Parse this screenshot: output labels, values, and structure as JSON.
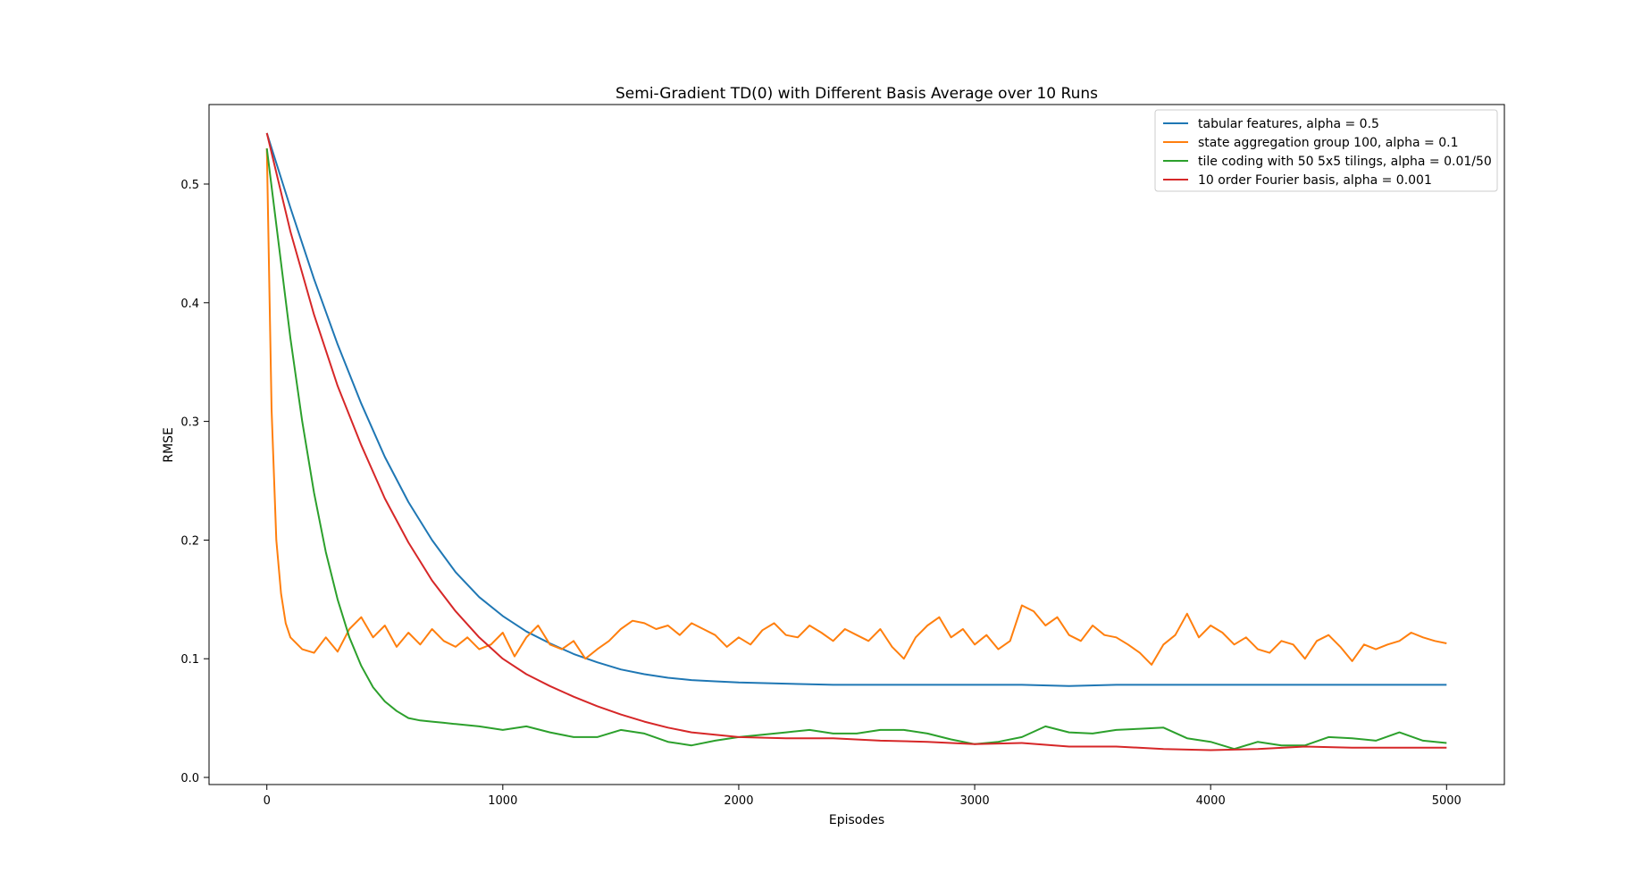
{
  "chart_data": {
    "type": "line",
    "title": "Semi-Gradient TD(0) with Different Basis Average over 10 Runs",
    "xlabel": "Episodes",
    "ylabel": "RMSE",
    "xlim": [
      -245,
      5245
    ],
    "ylim": [
      -0.006,
      0.567
    ],
    "xticks": [
      0,
      1000,
      2000,
      3000,
      4000,
      5000
    ],
    "xtick_labels": [
      "0",
      "1000",
      "2000",
      "3000",
      "4000",
      "5000"
    ],
    "yticks": [
      0.0,
      0.1,
      0.2,
      0.3,
      0.4,
      0.5
    ],
    "ytick_labels": [
      "0.0",
      "0.1",
      "0.2",
      "0.3",
      "0.4",
      "0.5"
    ],
    "grid": false,
    "legend_position": "upper right",
    "series": [
      {
        "name": "tabular features, alpha = 0.5",
        "color": "#1f77b4",
        "x": [
          0,
          100,
          200,
          300,
          400,
          500,
          600,
          700,
          800,
          900,
          1000,
          1100,
          1200,
          1300,
          1400,
          1500,
          1600,
          1700,
          1800,
          1900,
          2000,
          2200,
          2400,
          2600,
          2800,
          3000,
          3200,
          3400,
          3600,
          3800,
          4000,
          4200,
          4400,
          4600,
          4800,
          5000
        ],
        "y": [
          0.543,
          0.48,
          0.42,
          0.365,
          0.315,
          0.27,
          0.232,
          0.2,
          0.173,
          0.152,
          0.136,
          0.123,
          0.113,
          0.104,
          0.097,
          0.091,
          0.087,
          0.084,
          0.082,
          0.081,
          0.08,
          0.079,
          0.078,
          0.078,
          0.078,
          0.078,
          0.078,
          0.077,
          0.078,
          0.078,
          0.078,
          0.078,
          0.078,
          0.078,
          0.078,
          0.078
        ]
      },
      {
        "name": "state aggregation group 100, alpha = 0.1",
        "color": "#ff7f0e",
        "x": [
          0,
          20,
          40,
          60,
          80,
          100,
          150,
          200,
          250,
          300,
          350,
          400,
          450,
          500,
          550,
          600,
          650,
          700,
          750,
          800,
          850,
          900,
          950,
          1000,
          1050,
          1100,
          1150,
          1200,
          1250,
          1300,
          1350,
          1400,
          1450,
          1500,
          1550,
          1600,
          1650,
          1700,
          1750,
          1800,
          1850,
          1900,
          1950,
          2000,
          2050,
          2100,
          2150,
          2200,
          2250,
          2300,
          2350,
          2400,
          2450,
          2500,
          2550,
          2600,
          2650,
          2700,
          2750,
          2800,
          2850,
          2900,
          2950,
          3000,
          3050,
          3100,
          3150,
          3200,
          3250,
          3300,
          3350,
          3400,
          3450,
          3500,
          3550,
          3600,
          3650,
          3700,
          3750,
          3800,
          3850,
          3900,
          3950,
          4000,
          4050,
          4100,
          4150,
          4200,
          4250,
          4300,
          4350,
          4400,
          4450,
          4500,
          4550,
          4600,
          4650,
          4700,
          4750,
          4800,
          4850,
          4900,
          4950,
          5000
        ],
        "y": [
          0.53,
          0.31,
          0.2,
          0.155,
          0.13,
          0.118,
          0.108,
          0.105,
          0.118,
          0.106,
          0.125,
          0.135,
          0.118,
          0.128,
          0.11,
          0.122,
          0.112,
          0.125,
          0.115,
          0.11,
          0.118,
          0.108,
          0.112,
          0.122,
          0.102,
          0.118,
          0.128,
          0.112,
          0.108,
          0.115,
          0.1,
          0.108,
          0.115,
          0.125,
          0.132,
          0.13,
          0.125,
          0.128,
          0.12,
          0.13,
          0.125,
          0.12,
          0.11,
          0.118,
          0.112,
          0.124,
          0.13,
          0.12,
          0.118,
          0.128,
          0.122,
          0.115,
          0.125,
          0.12,
          0.115,
          0.125,
          0.11,
          0.1,
          0.118,
          0.128,
          0.135,
          0.118,
          0.125,
          0.112,
          0.12,
          0.108,
          0.115,
          0.145,
          0.14,
          0.128,
          0.135,
          0.12,
          0.115,
          0.128,
          0.12,
          0.118,
          0.112,
          0.105,
          0.095,
          0.112,
          0.12,
          0.138,
          0.118,
          0.128,
          0.122,
          0.112,
          0.118,
          0.108,
          0.105,
          0.115,
          0.112,
          0.1,
          0.115,
          0.12,
          0.11,
          0.098,
          0.112,
          0.108,
          0.112,
          0.115,
          0.122,
          0.118,
          0.115,
          0.113
        ]
      },
      {
        "name": "tile coding with 50 5x5 tilings, alpha = 0.01/50",
        "color": "#2ca02c",
        "x": [
          0,
          50,
          100,
          150,
          200,
          250,
          300,
          350,
          400,
          450,
          500,
          550,
          600,
          650,
          700,
          750,
          800,
          900,
          1000,
          1100,
          1200,
          1300,
          1400,
          1500,
          1600,
          1700,
          1800,
          1900,
          2000,
          2100,
          2200,
          2300,
          2400,
          2500,
          2600,
          2700,
          2800,
          2900,
          3000,
          3100,
          3200,
          3300,
          3400,
          3500,
          3600,
          3700,
          3800,
          3900,
          4000,
          4100,
          4200,
          4300,
          4400,
          4500,
          4600,
          4700,
          4800,
          4900,
          5000
        ],
        "y": [
          0.53,
          0.45,
          0.37,
          0.3,
          0.24,
          0.19,
          0.15,
          0.118,
          0.094,
          0.076,
          0.064,
          0.056,
          0.05,
          0.048,
          0.047,
          0.046,
          0.045,
          0.043,
          0.04,
          0.043,
          0.038,
          0.034,
          0.034,
          0.04,
          0.037,
          0.03,
          0.027,
          0.031,
          0.034,
          0.036,
          0.038,
          0.04,
          0.037,
          0.037,
          0.04,
          0.04,
          0.037,
          0.032,
          0.028,
          0.03,
          0.034,
          0.043,
          0.038,
          0.037,
          0.04,
          0.041,
          0.042,
          0.033,
          0.03,
          0.024,
          0.03,
          0.027,
          0.027,
          0.034,
          0.033,
          0.031,
          0.038,
          0.031,
          0.029
        ]
      },
      {
        "name": "10 order Fourier basis, alpha = 0.001",
        "color": "#d62728",
        "x": [
          0,
          100,
          200,
          300,
          400,
          500,
          600,
          700,
          800,
          900,
          1000,
          1100,
          1200,
          1300,
          1400,
          1500,
          1600,
          1700,
          1800,
          1900,
          2000,
          2200,
          2400,
          2600,
          2800,
          3000,
          3200,
          3400,
          3600,
          3800,
          4000,
          4200,
          4400,
          4600,
          4800,
          5000
        ],
        "y": [
          0.543,
          0.46,
          0.39,
          0.33,
          0.28,
          0.235,
          0.198,
          0.166,
          0.14,
          0.118,
          0.1,
          0.087,
          0.077,
          0.068,
          0.06,
          0.053,
          0.047,
          0.042,
          0.038,
          0.036,
          0.034,
          0.033,
          0.033,
          0.031,
          0.03,
          0.028,
          0.029,
          0.026,
          0.026,
          0.024,
          0.023,
          0.024,
          0.026,
          0.025,
          0.025,
          0.025
        ]
      }
    ]
  }
}
